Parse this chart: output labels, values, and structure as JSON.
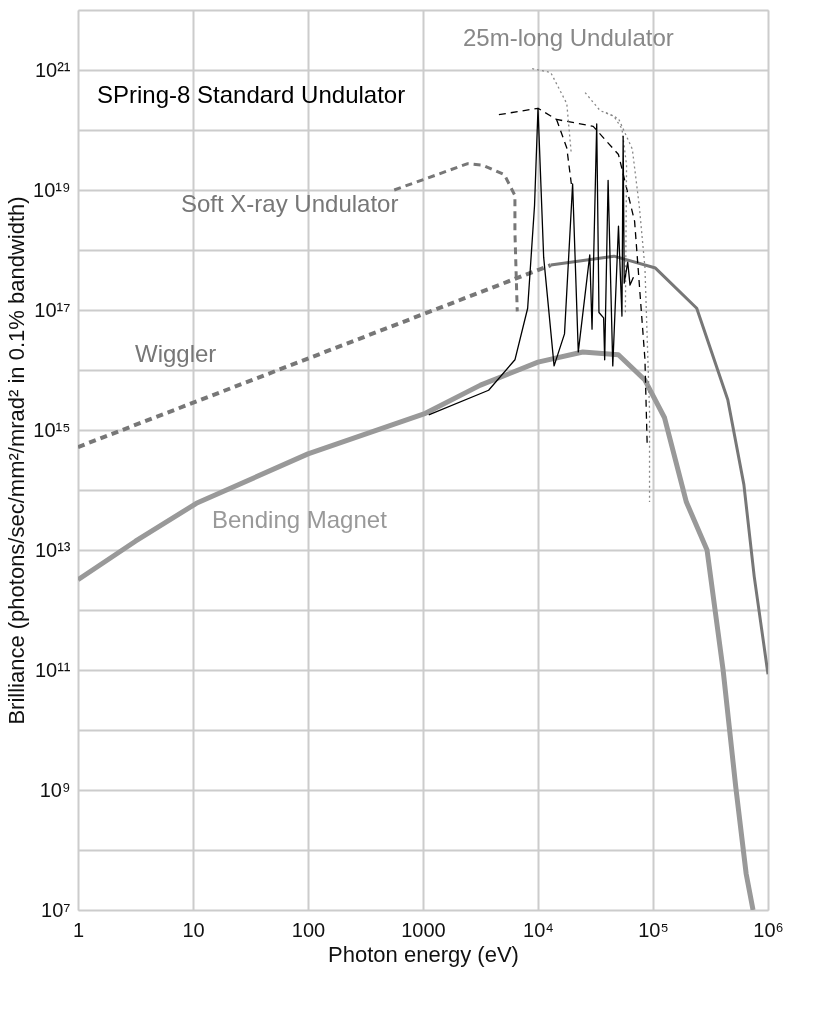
{
  "chart_data": {
    "type": "line",
    "xlabel": "Photon energy (eV)",
    "ylabel": "Brilliance  (photons/sec/mm²/mrad² in 0.1% bandwidth)",
    "log": "xy",
    "grid": true,
    "xlim": [
      1,
      1000000
    ],
    "ylim": [
      10000000.0,
      1e+22
    ],
    "xticks": [
      1,
      10,
      100,
      1000,
      {
        "value": 10000,
        "label": "10⁴"
      },
      {
        "value": 100000,
        "label": "10⁵"
      },
      {
        "value": 1000000,
        "label": "10⁶"
      }
    ],
    "yticks": [
      {
        "value": 10000000.0,
        "label": "10⁷"
      },
      {
        "value": 100000000.0,
        "label": null
      },
      {
        "value": 1000000000.0,
        "label": "10⁹"
      },
      {
        "value": 10000000000.0,
        "label": null
      },
      {
        "value": 100000000000.0,
        "label": "10¹¹"
      },
      {
        "value": 1000000000000.0,
        "label": null
      },
      {
        "value": 10000000000000.0,
        "label": "10¹³"
      },
      {
        "value": 100000000000000.0,
        "label": null
      },
      {
        "value": 1000000000000000.0,
        "label": "10¹⁵"
      },
      {
        "value": 1e+16,
        "label": null
      },
      {
        "value": 1e+17,
        "label": "10¹⁷"
      },
      {
        "value": 1e+18,
        "label": null
      },
      {
        "value": 1e+19,
        "label": "10¹⁹"
      },
      {
        "value": 1e+20,
        "label": null
      },
      {
        "value": 1e+21,
        "label": "10²¹"
      },
      {
        "value": 1e+22,
        "label": null
      }
    ],
    "series": [
      {
        "name": "Bending Magnet",
        "color": "#999999",
        "line_style": "solid",
        "x": [
          1,
          3.16,
          10.7,
          100,
          1050,
          3160,
          10000,
          24500,
          50000,
          85000,
          126000,
          195000,
          295000,
          407000,
          525000,
          646000,
          741000
        ],
        "values": [
          3200000000000.0,
          14000000000000.0,
          60000000000000.0,
          400000000000000.0,
          1900000000000000.0,
          5600000000000000.0,
          1.35e+16,
          2e+16,
          1.8e+16,
          6800000000000000.0,
          1600000000000000.0,
          63000000000000.0,
          10000000000000.0,
          100000000000.0,
          1100000000.0,
          40000000.0,
          10000000.0
        ]
      },
      {
        "name": "Wiggler",
        "color": "#777777",
        "line_style": "dashed",
        "x": [
          1,
          12900
        ],
        "values": [
          520000000000000.0,
          5.6e+17
        ]
      },
      {
        "color": "#777777",
        "line_style": "solid",
        "x": [
          12900,
          45700,
          105000,
          240000,
          447000,
          617000,
          759000,
          1000000
        ],
        "values": [
          5.6e+17,
          7.9e+17,
          5e+17,
          1.07e+17,
          3200000000000000.0,
          123000000000000.0,
          3600000000000.0,
          85000000000.0
        ]
      },
      {
        "name": "Soft X-ray Undulator",
        "color": "#777777",
        "line_style": "dashed",
        "x": [
          562,
          2450,
          3300,
          5100,
          6300,
          6300,
          6600
        ],
        "values": [
          1e+19,
          2.75e+19,
          2.6e+19,
          1.8e+19,
          8.1e+18,
          2e+18,
          9.5e+16
        ]
      },
      {
        "name": "SPring-8 Standard Undulator",
        "color": "#000000",
        "line_style": "dashed",
        "x": [
          4570,
          10000,
          14500,
          30200,
          50100,
          69200,
          85100,
          89100
        ],
        "values": [
          1.8e+20,
          2.3e+20,
          1.5e+20,
          1.15e+20,
          3.9e+19,
          3e+18,
          1.5e+16,
          520000000000000.0
        ]
      },
      {
        "color": "#000000",
        "line_style": "dashed",
        "x": [
          14500,
          17800,
          19500
        ],
        "values": [
          1.5e+20,
          5e+19,
          1.26e+19
        ]
      },
      {
        "name": "25m-long Undulator",
        "color": "#888888",
        "line_style": "dotted",
        "x": [
          8900,
          12900,
          17800,
          19500
        ],
        "values": [
          1.05e+21,
          9.1e+20,
          2.75e+20,
          3.9e+19
        ]
      },
      {
        "color": "#888888",
        "line_style": "dotted",
        "x": [
          25700,
          34700,
          45700,
          53700,
          58900,
          57500
        ],
        "values": [
          4.2e+20,
          2.1e+20,
          1.7e+20,
          1.05e+20,
          2.6e+19,
          8.7e+16
        ]
      },
      {
        "color": "#888888",
        "line_style": "dotted",
        "x": [
          38900,
          50100,
          66100,
          75900,
          85100,
          93300,
          93300
        ],
        "values": [
          1.95e+20,
          1.55e+20,
          4.8e+19,
          5.5e+18,
          5.1e+17,
          2100000000000000.0,
          63000000000000.0
        ]
      },
      {
        "color": "#000000",
        "line_style": "solid",
        "x": [
          1122,
          3720,
          6300,
          8130,
          9330,
          10000,
          11200,
          13800,
          17000,
          20000,
          22400,
          28200,
          29500,
          32400,
          33900,
          37200,
          38000,
          40700,
          44700,
          50100,
          53700,
          55000,
          56200,
          60300,
          63100,
          67600
        ],
        "values": [
          1780000000000000.0,
          4600000000000000.0,
          1.48e+16,
          1.07e+17,
          5.5e+18,
          2.3e+20,
          7.6e+17,
          1.17e+16,
          4e+16,
          1.26e+19,
          2e+16,
          8.3e+17,
          4.8e+16,
          1.26e+20,
          9.1e+16,
          7.4e+16,
          1.48e+16,
          1.45e+19,
          1.17e+16,
          2.5e+18,
          7.9e+16,
          7.8e+19,
          2.8e+17,
          6.3e+17,
          2.6e+17,
          3.5e+17
        ]
      }
    ]
  }
}
